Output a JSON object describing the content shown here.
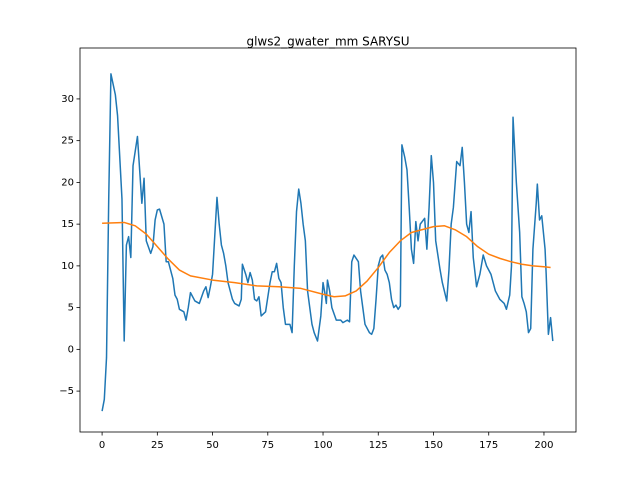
{
  "chart_data": {
    "type": "line",
    "title": "glws2_gwater_mm SARYSU",
    "xlim": [
      -10,
      214.5
    ],
    "ylim": [
      -9.9,
      36.1
    ],
    "xticks": [
      0,
      25,
      50,
      75,
      100,
      125,
      150,
      175,
      200
    ],
    "yticks": [
      {
        "value": -5,
        "label": "−5"
      },
      0,
      5,
      10,
      15,
      20,
      25,
      30
    ],
    "series": [
      {
        "color": "#1f77b4",
        "x": [
          0,
          1,
          2,
          3,
          4,
          6,
          7,
          9,
          10,
          11,
          12,
          13,
          14,
          16,
          18,
          19,
          20,
          22,
          23,
          24,
          25,
          26,
          28,
          29,
          30,
          32,
          33,
          34,
          35,
          37,
          38,
          39,
          40,
          42,
          44,
          46,
          47,
          48,
          49,
          50,
          52,
          53,
          54,
          55,
          56,
          57,
          59,
          60,
          62,
          63,
          63.5,
          65,
          66,
          67,
          68,
          69,
          70,
          71,
          72,
          74,
          76,
          77,
          78,
          79,
          80,
          81,
          82,
          83,
          85,
          86,
          87,
          88,
          89,
          90,
          91,
          92,
          93,
          95,
          96,
          97.5,
          99,
          100,
          101,
          101.5,
          102,
          103,
          104,
          106,
          108,
          109,
          111,
          112,
          113,
          114,
          116,
          117,
          118,
          119,
          121,
          122,
          123,
          124,
          125,
          126,
          127,
          128,
          129,
          130,
          131,
          132,
          133,
          134,
          135,
          135.7,
          137,
          138,
          139,
          140,
          141,
          142,
          143,
          144,
          146,
          147,
          148,
          149,
          150,
          151,
          153,
          154,
          156,
          157,
          158,
          159,
          160.5,
          162,
          163,
          164,
          165,
          166,
          167,
          168,
          169.5,
          171,
          172.5,
          174,
          176,
          177,
          178,
          180,
          182,
          183,
          184.5,
          185.3,
          186,
          187.5,
          189,
          190,
          191,
          192,
          193,
          194,
          195,
          196.5,
          197,
          198,
          199,
          200.5,
          201,
          202,
          203,
          204
        ],
        "values": [
          -7.4,
          -6,
          -1,
          18,
          33,
          30.5,
          28,
          18,
          1,
          12.5,
          13.5,
          11,
          22,
          25.5,
          17.5,
          20.5,
          13,
          11.5,
          12.3,
          15.5,
          16.7,
          16.8,
          15,
          10.5,
          10.5,
          8.5,
          6.5,
          6,
          4.8,
          4.5,
          3.5,
          5,
          6.8,
          5.8,
          5.5,
          7,
          7.5,
          6.2,
          7.5,
          9,
          18.2,
          15,
          12.5,
          11.5,
          10,
          8,
          6,
          5.5,
          5.2,
          6,
          10.2,
          9,
          8,
          9.2,
          8.3,
          6,
          5.8,
          6.3,
          4,
          4.5,
          8,
          9.3,
          9.3,
          10.3,
          8.5,
          8,
          5,
          3,
          3,
          2,
          10,
          16.5,
          19.2,
          17.5,
          15,
          13,
          7,
          3,
          2,
          1,
          4,
          8,
          6.5,
          5.5,
          8.3,
          7,
          5,
          3.5,
          3.5,
          3.2,
          3.5,
          3.3,
          10.5,
          11.3,
          10.5,
          7,
          5,
          3,
          2,
          1.8,
          2.5,
          6,
          10,
          11,
          11.3,
          9.5,
          9,
          8,
          6,
          5,
          5.3,
          4.8,
          5.2,
          24.5,
          23,
          21.5,
          17,
          12,
          10.3,
          15.3,
          13,
          15,
          15.7,
          12,
          17,
          23.2,
          20,
          13,
          9.5,
          8,
          5.8,
          9.5,
          15,
          17,
          22.5,
          22,
          24.2,
          20,
          15,
          14,
          16.5,
          11,
          7.5,
          9,
          11.3,
          10,
          9,
          8,
          7,
          6,
          5.5,
          4.8,
          6.5,
          10,
          27.8,
          20,
          14,
          6.3,
          5.5,
          4.5,
          2,
          2.5,
          12,
          17.5,
          19.8,
          15.5,
          16,
          12,
          9,
          1.8,
          3.8,
          1
        ]
      },
      {
        "color": "#ff7f0e",
        "x": [
          0,
          10,
          15,
          20,
          25,
          30,
          35,
          40,
          50,
          60,
          70,
          80,
          90,
          100,
          105,
          110,
          115,
          120,
          125,
          130,
          135,
          140,
          150,
          155,
          160,
          165,
          170,
          175,
          180,
          185,
          190,
          195,
          200,
          203
        ],
        "values": [
          15.1,
          15.2,
          14.8,
          13.8,
          12.3,
          10.8,
          9.5,
          8.8,
          8.3,
          8,
          7.6,
          7.5,
          7.3,
          6.6,
          6.3,
          6.4,
          7,
          8.2,
          9.8,
          11.6,
          13,
          14,
          14.7,
          14.8,
          14.3,
          13.5,
          12.3,
          11.4,
          10.9,
          10.5,
          10.2,
          10,
          9.9,
          9.8
        ]
      }
    ]
  }
}
